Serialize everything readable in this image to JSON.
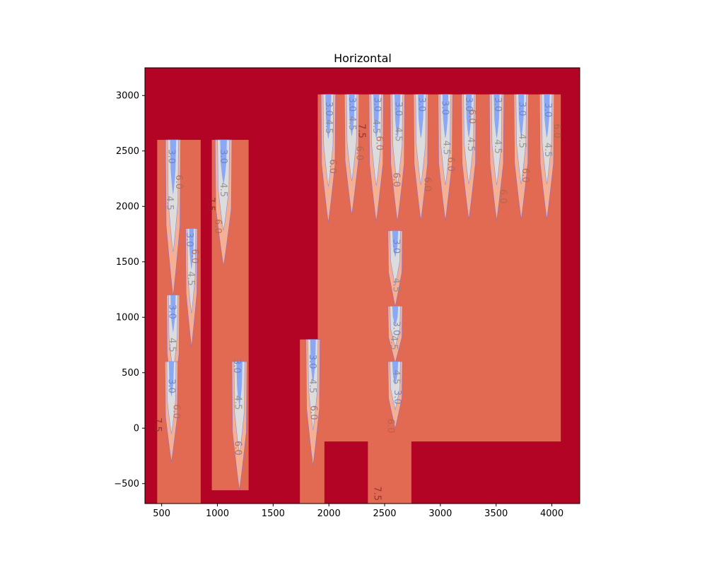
{
  "chart_data": {
    "type": "contour",
    "title": "Horizontal",
    "xlabel": "",
    "ylabel": "",
    "xlim": [
      350,
      4250
    ],
    "ylim": [
      -680,
      3250
    ],
    "x_ticks": [
      500,
      1000,
      1500,
      2000,
      2500,
      3000,
      3500,
      4000
    ],
    "y_ticks": [
      -500,
      0,
      500,
      1000,
      1500,
      2000,
      2500,
      3000
    ],
    "levels": [
      3.0,
      4.5,
      6.0,
      7.5
    ],
    "level_colors": {
      "below_3.0": "#7b9ff9",
      "3.0_4.5": "#dddcdc",
      "4.5_6.0": "#f5b093",
      "6.0_7.5": "#e26952",
      "above_7.5": "#b40426"
    },
    "background_level": "above_7.5",
    "slabs": [
      {
        "x": [
          460,
          850
        ],
        "y_bottom": -680,
        "y_top": 2600
      },
      {
        "x": [
          950,
          1280
        ],
        "y_bottom": -560,
        "y_top": 2600
      },
      {
        "x": [
          1740,
          1960
        ],
        "y_bottom": -680,
        "y_top": 800
      },
      {
        "x": [
          1900,
          4080
        ],
        "y_bottom": -120,
        "y_top": 3010
      },
      {
        "x": [
          2350,
          2740
        ],
        "y_bottom": -680,
        "y_top": 0
      }
    ],
    "pockets": [
      {
        "x": [
          535,
          670
        ],
        "y_top": 2600,
        "y_bottom": 1200
      },
      {
        "x": [
          715,
          820
        ],
        "y_top": 1800,
        "y_bottom": 740
      },
      {
        "x": [
          545,
          660
        ],
        "y_top": 1200,
        "y_bottom": 240
      },
      {
        "x": [
          530,
          645
        ],
        "y_top": 600,
        "y_bottom": -300
      },
      {
        "x": [
          980,
          1130
        ],
        "y_top": 2600,
        "y_bottom": 1470
      },
      {
        "x": [
          1130,
          1265
        ],
        "y_top": 600,
        "y_bottom": -550
      },
      {
        "x": [
          1795,
          1920
        ],
        "y_top": 800,
        "y_bottom": -330
      },
      {
        "x": [
          1930,
          2060
        ],
        "y_top": 3010,
        "y_bottom": 1860
      },
      {
        "x": [
          2140,
          2270
        ],
        "y_top": 3010,
        "y_bottom": 1930
      },
      {
        "x": [
          2360,
          2490
        ],
        "y_top": 3010,
        "y_bottom": 1870
      },
      {
        "x": [
          2550,
          2680
        ],
        "y_top": 3010,
        "y_bottom": 1870
      },
      {
        "x": [
          2760,
          2890
        ],
        "y_top": 3010,
        "y_bottom": 1880
      },
      {
        "x": [
          2980,
          3110
        ],
        "y_top": 3010,
        "y_bottom": 1880
      },
      {
        "x": [
          3190,
          3320
        ],
        "y_top": 3010,
        "y_bottom": 1890
      },
      {
        "x": [
          3440,
          3570
        ],
        "y_top": 3010,
        "y_bottom": 1880
      },
      {
        "x": [
          3660,
          3790
        ],
        "y_top": 3010,
        "y_bottom": 1890
      },
      {
        "x": [
          3890,
          4020
        ],
        "y_top": 3010,
        "y_bottom": 1890
      },
      {
        "x": [
          2530,
          2660
        ],
        "y_top": 1780,
        "y_bottom": 1100
      },
      {
        "x": [
          2530,
          2660
        ],
        "y_top": 1100,
        "y_bottom": 590
      },
      {
        "x": [
          2530,
          2660
        ],
        "y_top": 600,
        "y_bottom": 0
      }
    ],
    "contour_labels": [
      {
        "text": "3.0",
        "x": 585,
        "y": 2450
      },
      {
        "text": "6.0",
        "x": 650,
        "y": 2220
      },
      {
        "text": "4.5",
        "x": 570,
        "y": 2030
      },
      {
        "text": "3.0",
        "x": 745,
        "y": 1700
      },
      {
        "text": "6.0",
        "x": 795,
        "y": 1550
      },
      {
        "text": "4.5",
        "x": 760,
        "y": 1350
      },
      {
        "text": "3.0",
        "x": 590,
        "y": 1050
      },
      {
        "text": "4.5",
        "x": 590,
        "y": 750
      },
      {
        "text": "3.0",
        "x": 585,
        "y": 380
      },
      {
        "text": "6.0",
        "x": 630,
        "y": 150
      },
      {
        "text": "7.5",
        "x": 460,
        "y": 30
      },
      {
        "text": "3.0",
        "x": 1050,
        "y": 2450
      },
      {
        "text": "4.5",
        "x": 1050,
        "y": 2150
      },
      {
        "text": "6.0",
        "x": 1000,
        "y": 1820
      },
      {
        "text": "7.5",
        "x": 940,
        "y": 2020
      },
      {
        "text": "3.0",
        "x": 1170,
        "y": 560
      },
      {
        "text": "4.5",
        "x": 1180,
        "y": 230
      },
      {
        "text": "6.0",
        "x": 1180,
        "y": -180
      },
      {
        "text": "3.0",
        "x": 1850,
        "y": 600
      },
      {
        "text": "4.5",
        "x": 1850,
        "y": 380
      },
      {
        "text": "6.0",
        "x": 1860,
        "y": 140
      },
      {
        "text": "3.0",
        "x": 1995,
        "y": 2880
      },
      {
        "text": "4.5",
        "x": 1995,
        "y": 2720
      },
      {
        "text": "6.0",
        "x": 2030,
        "y": 2360
      },
      {
        "text": "3.0",
        "x": 2205,
        "y": 2920
      },
      {
        "text": "4.5",
        "x": 2205,
        "y": 2750
      },
      {
        "text": "6.0",
        "x": 2270,
        "y": 2480
      },
      {
        "text": "7.5",
        "x": 2290,
        "y": 2680
      },
      {
        "text": "3.0",
        "x": 2430,
        "y": 2920
      },
      {
        "text": "4.5",
        "x": 2420,
        "y": 2720
      },
      {
        "text": "6.0",
        "x": 2450,
        "y": 2570
      },
      {
        "text": "3.0",
        "x": 2620,
        "y": 2880
      },
      {
        "text": "4.5",
        "x": 2620,
        "y": 2650
      },
      {
        "text": "6.0",
        "x": 2600,
        "y": 2240
      },
      {
        "text": "3.0",
        "x": 2830,
        "y": 2920
      },
      {
        "text": "6.0",
        "x": 2880,
        "y": 2200
      },
      {
        "text": "3.0",
        "x": 3040,
        "y": 2890
      },
      {
        "text": "4.5",
        "x": 3050,
        "y": 2530
      },
      {
        "text": "6.0",
        "x": 3090,
        "y": 2380
      },
      {
        "text": "3.0",
        "x": 3250,
        "y": 2920
      },
      {
        "text": "4.5",
        "x": 3270,
        "y": 2560
      },
      {
        "text": "6.0",
        "x": 3280,
        "y": 2810
      },
      {
        "text": "3.0",
        "x": 3510,
        "y": 2920
      },
      {
        "text": "4.5",
        "x": 3510,
        "y": 2540
      },
      {
        "text": "6.0",
        "x": 3560,
        "y": 2090
      },
      {
        "text": "3.0",
        "x": 3730,
        "y": 2880
      },
      {
        "text": "4.5",
        "x": 3730,
        "y": 2590
      },
      {
        "text": "6.0",
        "x": 3760,
        "y": 2280
      },
      {
        "text": "3.0",
        "x": 3960,
        "y": 2870
      },
      {
        "text": "4.5",
        "x": 3960,
        "y": 2510
      },
      {
        "text": "6.0",
        "x": 4040,
        "y": 2680
      },
      {
        "text": "3.0",
        "x": 2600,
        "y": 1640
      },
      {
        "text": "4.5",
        "x": 2600,
        "y": 1290
      },
      {
        "text": "3.0",
        "x": 2600,
        "y": 900
      },
      {
        "text": "4.5",
        "x": 2580,
        "y": 770
      },
      {
        "text": "4.5",
        "x": 2600,
        "y": 460
      },
      {
        "text": "3.0",
        "x": 2610,
        "y": 280
      },
      {
        "text": "6.0",
        "x": 2550,
        "y": 20
      },
      {
        "text": "7.5",
        "x": 2430,
        "y": -590
      }
    ]
  }
}
